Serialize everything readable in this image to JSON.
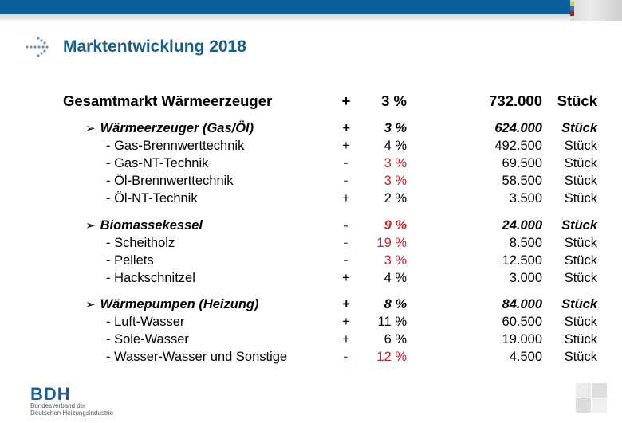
{
  "slide": {
    "title": "Marktentwicklung 2018",
    "accent_color": "#0a5e9c",
    "negative_color": "#c8242b"
  },
  "total": {
    "label": "Gesamtmarkt Wärmeerzeuger",
    "sign": "+",
    "pct": "3 %",
    "count": "732.000",
    "unit": "Stück"
  },
  "rows": [
    {
      "label": "Wärmeerzeuger (Gas/Öl)",
      "sign": "+",
      "pct": "3 %",
      "count": "624.000",
      "unit": "Stück",
      "type": "category",
      "negative": false
    },
    {
      "label": "- Gas-Brennwerttechnik",
      "sign": "+",
      "pct": "4 %",
      "count": "492.500",
      "unit": "Stück",
      "type": "item",
      "negative": false
    },
    {
      "label": "- Gas-NT-Technik",
      "sign": "-",
      "pct": "3 %",
      "count": "69.500",
      "unit": "Stück",
      "type": "item",
      "negative": true
    },
    {
      "label": "- Öl-Brennwerttechnik",
      "sign": "-",
      "pct": "3 %",
      "count": "58.500",
      "unit": "Stück",
      "type": "item",
      "negative": true
    },
    {
      "label": "- Öl-NT-Technik",
      "sign": "+",
      "pct": "2 %",
      "count": "3.500",
      "unit": "Stück",
      "type": "item",
      "negative": false
    },
    {
      "label": "Biomassekessel",
      "sign": "-",
      "pct": "9 %",
      "count": "24.000",
      "unit": "Stück",
      "type": "category",
      "negative": true
    },
    {
      "label": "- Scheitholz",
      "sign": "-",
      "pct": "19 %",
      "count": "8.500",
      "unit": "Stück",
      "type": "item",
      "negative": true
    },
    {
      "label": "- Pellets",
      "sign": "-",
      "pct": "3 %",
      "count": "12.500",
      "unit": "Stück",
      "type": "item",
      "negative": true
    },
    {
      "label": "- Hackschnitzel",
      "sign": "+",
      "pct": "4 %",
      "count": "3.000",
      "unit": "Stück",
      "type": "item",
      "negative": false
    },
    {
      "label": "Wärmepumpen (Heizung)",
      "sign": "+",
      "pct": "8 %",
      "count": "84.000",
      "unit": "Stück",
      "type": "category",
      "negative": false
    },
    {
      "label": "- Luft-Wasser",
      "sign": "+",
      "pct": "11 %",
      "count": "60.500",
      "unit": "Stück",
      "type": "item",
      "negative": false
    },
    {
      "label": "- Sole-Wasser",
      "sign": "+",
      "pct": "6 %",
      "count": "19.000",
      "unit": "Stück",
      "type": "item",
      "negative": false
    },
    {
      "label": "- Wasser-Wasser und Sonstige",
      "sign": "-",
      "pct": "12 %",
      "count": "4.500",
      "unit": "Stück",
      "type": "item",
      "negative": true
    }
  ],
  "bullet_glyph": "➢",
  "logo": {
    "name": "BDH",
    "subtitle_line1": "Bundesverband der",
    "subtitle_line2": "Deutschen Heizungsindustrie"
  }
}
